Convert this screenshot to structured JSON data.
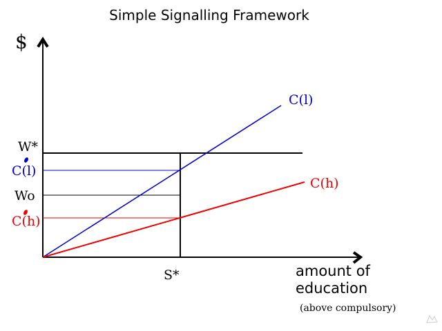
{
  "title": "Simple Signalling Framework",
  "y_axis_label": "$",
  "x_axis_label_line1": "amount of",
  "x_axis_label_line2": "education",
  "x_axis_note": "(above compulsory)",
  "curves": {
    "low": {
      "label": "C(l)",
      "color": "#0000cc"
    },
    "high": {
      "label": "C(h)",
      "color": "#ee0000"
    }
  },
  "y_labels": {
    "w_star": "W*",
    "c_low": "C(l)",
    "w_o": "Wo",
    "c_high": "C(h)"
  },
  "x_labels": {
    "s_star": "S*"
  }
}
